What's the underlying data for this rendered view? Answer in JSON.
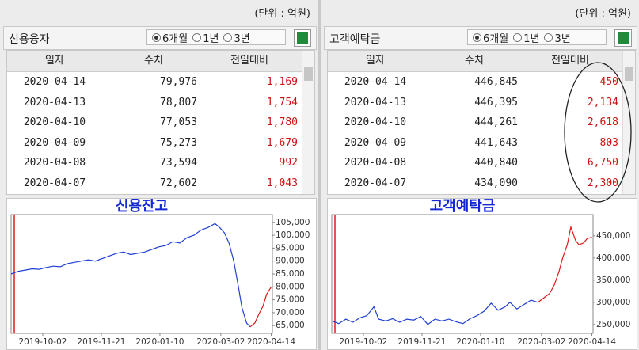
{
  "panels": [
    {
      "unit": "(단위 : 억원)",
      "title": "신용융자",
      "options": [
        "6개월",
        "1년",
        "3년"
      ],
      "table": {
        "headers": [
          "일자",
          "수치",
          "전일대비"
        ],
        "rows": [
          [
            "2020-04-14",
            "79,976",
            "1,169"
          ],
          [
            "2020-04-13",
            "78,807",
            "1,754"
          ],
          [
            "2020-04-10",
            "77,053",
            "1,780"
          ],
          [
            "2020-04-09",
            "75,273",
            "1,679"
          ],
          [
            "2020-04-08",
            "73,594",
            "992"
          ],
          [
            "2020-04-07",
            "72,602",
            "1,043"
          ]
        ]
      },
      "chart": {
        "type": "line",
        "title": "신용잔고",
        "xlim": [
          "2019-09-05",
          "2020-04-15"
        ],
        "xticks": [
          "2019-10-02",
          "2019-11-21",
          "2020-01-10",
          "2020-03-02",
          "2020-04-14"
        ],
        "ylim": [
          62000,
          108000
        ],
        "yticks": [
          {
            "value": 105000,
            "label": "105,000"
          },
          {
            "value": 100000,
            "label": "100,000"
          },
          {
            "value": 95000,
            "label": "95,000"
          },
          {
            "value": 90000,
            "label": "90,000"
          },
          {
            "value": 85000,
            "label": "85,000"
          },
          {
            "value": 80000,
            "label": "80,000"
          },
          {
            "value": 75000,
            "label": "75,000"
          },
          {
            "value": 70000,
            "label": "70,000"
          },
          {
            "value": 65000,
            "label": "65,000"
          }
        ],
        "series": [
          {
            "color": "#1f3fd6",
            "x": [
              "2019-09-05",
              "2019-09-11",
              "2019-09-17",
              "2019-09-23",
              "2019-09-29",
              "2019-10-05",
              "2019-10-11",
              "2019-10-17",
              "2019-10-23",
              "2019-10-29",
              "2019-11-04",
              "2019-11-10",
              "2019-11-16",
              "2019-11-22",
              "2019-11-28",
              "2019-12-04",
              "2019-12-10",
              "2019-12-16",
              "2019-12-22",
              "2019-12-28",
              "2020-01-03",
              "2020-01-09",
              "2020-01-15",
              "2020-01-21",
              "2020-01-27",
              "2020-02-02",
              "2020-02-08",
              "2020-02-14",
              "2020-02-20",
              "2020-02-26",
              "2020-03-01",
              "2020-03-05",
              "2020-03-09",
              "2020-03-13",
              "2020-03-17",
              "2020-03-20",
              "2020-03-24",
              "2020-03-27"
            ],
            "values": [
              85000,
              86000,
              86500,
              87000,
              86800,
              87500,
              88000,
              87800,
              89000,
              89500,
              90000,
              90500,
              90000,
              91000,
              92000,
              93000,
              93500,
              92500,
              93000,
              93500,
              94500,
              95500,
              96000,
              97500,
              97000,
              99000,
              100000,
              102000,
              103000,
              104500,
              103000,
              101000,
              97000,
              90000,
              80000,
              72000,
              66000,
              64500
            ]
          },
          {
            "color": "#e01818",
            "x": [
              "2020-03-27",
              "2020-03-31",
              "2020-04-03",
              "2020-04-07",
              "2020-04-10",
              "2020-04-14"
            ],
            "values": [
              64500,
              66000,
              69000,
              72602,
              77053,
              79976
            ]
          }
        ]
      }
    },
    {
      "unit": "(단위 : 억원)",
      "title": "고객예탁금",
      "options": [
        "6개월",
        "1년",
        "3년"
      ],
      "table": {
        "headers": [
          "일자",
          "수치",
          "전일대비"
        ],
        "rows": [
          [
            "2020-04-14",
            "446,845",
            "450"
          ],
          [
            "2020-04-13",
            "446,395",
            "2,134"
          ],
          [
            "2020-04-10",
            "444,261",
            "2,618"
          ],
          [
            "2020-04-09",
            "441,643",
            "803"
          ],
          [
            "2020-04-08",
            "440,840",
            "6,750"
          ],
          [
            "2020-04-07",
            "434,090",
            "2,300"
          ]
        ]
      },
      "chart": {
        "type": "line",
        "title": "고객예탁금",
        "xlim": [
          "2019-09-05",
          "2020-04-15"
        ],
        "xticks": [
          "2019-10-02",
          "2019-11-21",
          "2020-01-10",
          "2020-03-02",
          "2020-04-14"
        ],
        "ylim": [
          230000,
          498000
        ],
        "yticks": [
          {
            "value": 450000,
            "label": "450,000"
          },
          {
            "value": 400000,
            "label": "400,000"
          },
          {
            "value": 350000,
            "label": "350,000"
          },
          {
            "value": 300000,
            "label": "300,000"
          },
          {
            "value": 250000,
            "label": "250,000"
          }
        ],
        "series": [
          {
            "color": "#1f3fd6",
            "x": [
              "2019-09-05",
              "2019-09-11",
              "2019-09-17",
              "2019-09-23",
              "2019-09-29",
              "2019-10-05",
              "2019-10-11",
              "2019-10-15",
              "2019-10-21",
              "2019-10-27",
              "2019-11-02",
              "2019-11-08",
              "2019-11-14",
              "2019-11-20",
              "2019-11-26",
              "2019-12-02",
              "2019-12-08",
              "2019-12-14",
              "2019-12-20",
              "2019-12-26",
              "2020-01-01",
              "2020-01-07",
              "2020-01-13",
              "2020-01-19",
              "2020-01-25",
              "2020-01-31",
              "2020-02-04",
              "2020-02-10",
              "2020-02-16",
              "2020-02-22",
              "2020-02-28"
            ],
            "values": [
              258000,
              252000,
              262000,
              255000,
              265000,
              270000,
              290000,
              262000,
              258000,
              263000,
              255000,
              262000,
              260000,
              268000,
              250000,
              262000,
              258000,
              262000,
              256000,
              252000,
              263000,
              270000,
              280000,
              298000,
              282000,
              290000,
              300000,
              285000,
              295000,
              305000,
              300000
            ]
          },
          {
            "color": "#e01818",
            "x": [
              "2020-02-28",
              "2020-03-05",
              "2020-03-09",
              "2020-03-13",
              "2020-03-17",
              "2020-03-20",
              "2020-03-24",
              "2020-03-27",
              "2020-03-31",
              "2020-04-03",
              "2020-04-07",
              "2020-04-10",
              "2020-04-14"
            ],
            "values": [
              300000,
              312000,
              320000,
              340000,
              370000,
              400000,
              430000,
              470000,
              440000,
              430000,
              434090,
              444261,
              446845
            ]
          }
        ]
      }
    }
  ]
}
